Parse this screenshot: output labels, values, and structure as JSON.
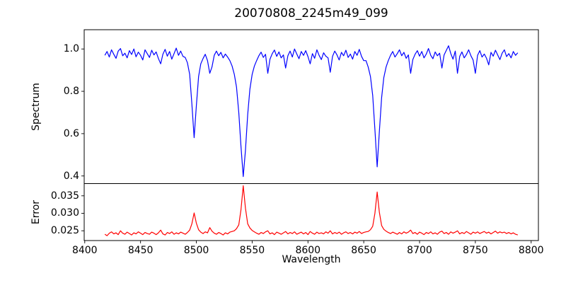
{
  "chart_data": {
    "type": "line",
    "title": "20070808_2245m49_099",
    "xlabel": "Wavelength",
    "xlim": [
      8399.5,
      8806.5
    ],
    "xticks": [
      8400,
      8450,
      8500,
      8550,
      8600,
      8650,
      8700,
      8750,
      8800
    ],
    "xtick_labels": [
      "8400",
      "8450",
      "8500",
      "8550",
      "8600",
      "8650",
      "8700",
      "8750",
      "8800"
    ],
    "grid": false,
    "legend": "none",
    "panels": [
      {
        "ylabel": "Spectrum",
        "ylim": [
          0.364,
          1.091
        ],
        "yticks": [
          0.4,
          0.6,
          0.8,
          1.0
        ],
        "ytick_labels": [
          "0.4",
          "0.6",
          "0.8",
          "1.0"
        ],
        "annotations": "absorption lines at 8498, 8542, 8662 (Ca II triplet); depths 0.58, 0.40, 0.44",
        "series": {
          "name": "spectrum",
          "color": "#0000ff",
          "x_start": 8418,
          "x_step": 2,
          "values": [
            0.97,
            0.988,
            0.962,
            0.996,
            0.975,
            0.956,
            0.99,
            1.002,
            0.968,
            0.98,
            0.958,
            0.992,
            0.974,
            1.0,
            0.963,
            0.985,
            0.97,
            0.948,
            0.996,
            0.978,
            0.96,
            0.994,
            0.972,
            0.986,
            0.955,
            0.93,
            0.975,
            0.998,
            0.966,
            0.988,
            0.952,
            0.978,
            1.004,
            0.97,
            0.99,
            0.965,
            0.96,
            0.935,
            0.88,
            0.74,
            0.581,
            0.73,
            0.87,
            0.93,
            0.955,
            0.975,
            0.945,
            0.885,
            0.915,
            0.97,
            0.99,
            0.968,
            0.984,
            0.958,
            0.976,
            0.962,
            0.945,
            0.92,
            0.88,
            0.82,
            0.7,
            0.54,
            0.397,
            0.52,
            0.69,
            0.81,
            0.88,
            0.92,
            0.945,
            0.968,
            0.985,
            0.96,
            0.975,
            0.885,
            0.952,
            0.978,
            0.995,
            0.965,
            0.986,
            0.958,
            0.972,
            0.91,
            0.968,
            0.99,
            0.962,
            1.0,
            0.976,
            0.954,
            0.988,
            0.97,
            0.992,
            0.964,
            0.93,
            0.978,
            0.956,
            0.996,
            0.97,
            0.95,
            0.982,
            0.966,
            0.958,
            0.89,
            0.965,
            0.99,
            0.972,
            0.948,
            0.984,
            0.968,
            0.994,
            0.96,
            0.976,
            0.952,
            0.988,
            0.97,
            0.998,
            0.965,
            0.945,
            0.945,
            0.915,
            0.87,
            0.78,
            0.62,
            0.443,
            0.61,
            0.77,
            0.865,
            0.915,
            0.945,
            0.97,
            0.988,
            0.962,
            0.978,
            0.996,
            0.968,
            0.984,
            0.956,
            0.972,
            0.885,
            0.95,
            0.975,
            0.992,
            0.966,
            0.988,
            0.958,
            0.976,
            1.002,
            0.97,
            0.954,
            0.986,
            0.968,
            0.98,
            0.91,
            0.972,
            0.994,
            1.015,
            0.978,
            0.952,
            0.99,
            0.885,
            0.965,
            0.986,
            0.958,
            0.974,
            0.996,
            0.968,
            0.948,
            0.885,
            0.97,
            0.992,
            0.962,
            0.976,
            0.956,
            0.925,
            0.984,
            0.966,
            0.994,
            0.972,
            0.95,
            0.98,
            0.996,
            0.964,
            0.978,
            0.958,
            0.988,
            0.97,
            0.982
          ]
        }
      },
      {
        "ylabel": "Error",
        "ylim": [
          0.0222,
          0.0385
        ],
        "yticks": [
          0.025,
          0.03,
          0.035
        ],
        "ytick_labels": [
          "0.025",
          "0.030",
          "0.035"
        ],
        "annotations": "error spikes at 8498 (0.030), 8542 (0.038), 8662 (0.036); baseline ~0.0243",
        "series": {
          "name": "error",
          "color": "#ff0000",
          "x_start": 8418,
          "x_step": 2,
          "values": [
            0.024,
            0.0236,
            0.0243,
            0.0247,
            0.0241,
            0.0244,
            0.0239,
            0.025,
            0.0243,
            0.024,
            0.0246,
            0.0242,
            0.0238,
            0.0244,
            0.0241,
            0.0247,
            0.0243,
            0.0239,
            0.0245,
            0.0242,
            0.024,
            0.0246,
            0.0243,
            0.0239,
            0.0244,
            0.0252,
            0.0241,
            0.0238,
            0.0245,
            0.0242,
            0.0247,
            0.024,
            0.0244,
            0.0241,
            0.0246,
            0.0243,
            0.024,
            0.0245,
            0.0252,
            0.027,
            0.0301,
            0.0272,
            0.0253,
            0.0246,
            0.0242,
            0.0247,
            0.0244,
            0.0259,
            0.0249,
            0.0243,
            0.024,
            0.0245,
            0.0242,
            0.0238,
            0.0244,
            0.0241,
            0.0246,
            0.0248,
            0.025,
            0.0256,
            0.0267,
            0.031,
            0.0379,
            0.0315,
            0.027,
            0.0258,
            0.0251,
            0.0247,
            0.0243,
            0.024,
            0.0245,
            0.0242,
            0.0247,
            0.025,
            0.0241,
            0.0244,
            0.0239,
            0.0246,
            0.0243,
            0.024,
            0.0244,
            0.0248,
            0.0241,
            0.0245,
            0.0242,
            0.0247,
            0.024,
            0.0243,
            0.0246,
            0.0241,
            0.0245,
            0.0239,
            0.0248,
            0.0243,
            0.024,
            0.0246,
            0.0242,
            0.0244,
            0.0241,
            0.0247,
            0.0243,
            0.025,
            0.0241,
            0.0245,
            0.0242,
            0.0246,
            0.024,
            0.0244,
            0.0247,
            0.0242,
            0.0245,
            0.0241,
            0.0246,
            0.0243,
            0.0248,
            0.0242,
            0.0245,
            0.0247,
            0.0248,
            0.0253,
            0.0263,
            0.03,
            0.0361,
            0.0303,
            0.0265,
            0.0254,
            0.0249,
            0.0245,
            0.0242,
            0.0246,
            0.0243,
            0.024,
            0.0245,
            0.0241,
            0.0247,
            0.0243,
            0.0246,
            0.0252,
            0.0242,
            0.0245,
            0.024,
            0.0246,
            0.0243,
            0.0239,
            0.0245,
            0.0242,
            0.0247,
            0.0241,
            0.0244,
            0.024,
            0.0246,
            0.0249,
            0.0242,
            0.0245,
            0.024,
            0.0247,
            0.0243,
            0.0246,
            0.025,
            0.0241,
            0.0245,
            0.0242,
            0.0248,
            0.0244,
            0.024,
            0.0246,
            0.0243,
            0.0247,
            0.0242,
            0.0245,
            0.0248,
            0.0243,
            0.0246,
            0.0241,
            0.0245,
            0.0249,
            0.0243,
            0.0247,
            0.0244,
            0.0246,
            0.0242,
            0.0245,
            0.0241,
            0.0244,
            0.024,
            0.0238
          ]
        }
      }
    ],
    "colors": {
      "spectrum_line": "#0000ff",
      "error_line": "#ff0000",
      "axes": "#000000",
      "background": "#ffffff"
    }
  }
}
